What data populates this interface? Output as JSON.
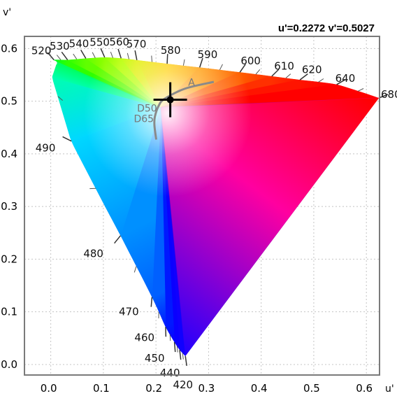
{
  "chart_data": {
    "type": "scatter",
    "title": "",
    "xlabel": "u'",
    "ylabel": "v'",
    "readout": "u'=0.2272 v'=0.5027",
    "xlim": [
      -0.05,
      0.625
    ],
    "ylim": [
      -0.02,
      0.623
    ],
    "x_ticks": [
      "0.0",
      "0.1",
      "0.2",
      "0.3",
      "0.4",
      "0.5",
      "0.6"
    ],
    "y_ticks": [
      "0.0",
      "0.1",
      "0.2",
      "0.3",
      "0.4",
      "0.5",
      "0.6"
    ],
    "grid": true,
    "selected_point": {
      "u": 0.2272,
      "v": 0.5027
    },
    "spectral_locus": [
      {
        "nm": "420",
        "u": 0.2559,
        "v": 0.0159
      },
      {
        "nm": "440",
        "u": 0.2451,
        "v": 0.0276
      },
      {
        "nm": "450",
        "u": 0.2351,
        "v": 0.0423
      },
      {
        "nm": "460",
        "u": 0.2183,
        "v": 0.0713
      },
      {
        "nm": "470",
        "u": 0.1924,
        "v": 0.1279
      },
      {
        "nm": "480",
        "u": 0.1326,
        "v": 0.2446
      },
      {
        "nm": "490",
        "u": 0.0392,
        "v": 0.4242
      },
      {
        "nm": "520",
        "u": 0.0061,
        "v": 0.5783
      },
      {
        "nm": "530",
        "u": 0.0319,
        "v": 0.5784
      },
      {
        "nm": "540",
        "u": 0.0667,
        "v": 0.5812
      },
      {
        "nm": "550",
        "u": 0.1025,
        "v": 0.5832
      },
      {
        "nm": "560",
        "u": 0.1337,
        "v": 0.5814
      },
      {
        "nm": "570",
        "u": 0.1637,
        "v": 0.578
      },
      {
        "nm": "580",
        "u": 0.2212,
        "v": 0.571
      },
      {
        "nm": "590",
        "u": 0.2831,
        "v": 0.564
      },
      {
        "nm": "600",
        "u": 0.3595,
        "v": 0.5549
      },
      {
        "nm": "610",
        "u": 0.4202,
        "v": 0.5473
      },
      {
        "nm": "620",
        "u": 0.4737,
        "v": 0.5405
      },
      {
        "nm": "640",
        "u": 0.5436,
        "v": 0.5316
      },
      {
        "nm": "680",
        "u": 0.6239,
        "v": 0.5061
      }
    ],
    "planckian_locus": [
      {
        "u": 0.2005,
        "v": 0.427
      },
      {
        "u": 0.1972,
        "v": 0.453
      },
      {
        "u": 0.1978,
        "v": 0.47
      },
      {
        "u": 0.205,
        "v": 0.491
      },
      {
        "u": 0.2165,
        "v": 0.5045
      },
      {
        "u": 0.256,
        "v": 0.524
      },
      {
        "u": 0.31,
        "v": 0.5366
      }
    ],
    "illuminants": [
      {
        "name": "A",
        "u": 0.256,
        "v": 0.524
      },
      {
        "name": "D50",
        "u": 0.2092,
        "v": 0.4881
      },
      {
        "name": "D65",
        "u": 0.1978,
        "v": 0.4683
      }
    ]
  }
}
